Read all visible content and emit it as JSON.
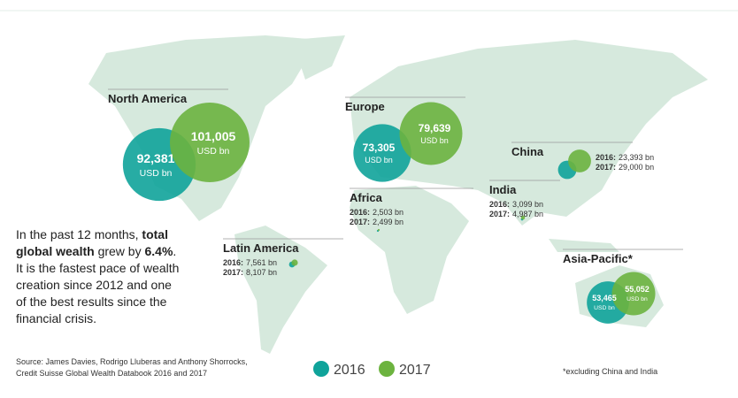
{
  "chart_data": {
    "type": "bubble-map",
    "series": [
      {
        "name": "2016",
        "color": "#0fa39a"
      },
      {
        "name": "2017",
        "color": "#6cb33f"
      }
    ],
    "year_labels": [
      "2016:",
      "2017:"
    ],
    "unit": "USD bn",
    "regions": [
      {
        "name": "North America",
        "values": [
          92381,
          101005
        ],
        "value_labels": [
          "92,381",
          "101,005"
        ]
      },
      {
        "name": "Europe",
        "values": [
          73305,
          79639
        ],
        "value_labels": [
          "73,305",
          "79,639"
        ]
      },
      {
        "name": "Africa",
        "values": [
          2503,
          2499
        ],
        "value_labels": [
          "2,503 bn",
          "2,499 bn"
        ]
      },
      {
        "name": "Latin America",
        "values": [
          7561,
          8107
        ],
        "value_labels": [
          "7,561 bn",
          "8,107 bn"
        ]
      },
      {
        "name": "India",
        "values": [
          3099,
          4987
        ],
        "value_labels": [
          "3,099 bn",
          "4,987 bn"
        ]
      },
      {
        "name": "China",
        "values": [
          23393,
          29000
        ],
        "value_labels": [
          "23,393 bn",
          "29,000 bn"
        ]
      },
      {
        "name": "Asia-Pacific*",
        "values": [
          53465,
          55052
        ],
        "value_labels": [
          "53,465",
          "55,052"
        ]
      }
    ],
    "note": [
      {
        "text": "In the past 12 months, ",
        "bold": false
      },
      {
        "text": "total global wealth",
        "bold": true
      },
      {
        "text": " grew by ",
        "bold": false
      },
      {
        "text": "6.4%",
        "bold": true
      },
      {
        "text": ". It is the fastest pace of wealth creation since 2012 and one of the best results since the financial crisis.",
        "bold": false
      }
    ],
    "source": [
      "Source: James Davies, Rodrigo Lluberas and Anthony Shorrocks,",
      "Credit Suisse Global Wealth Databook 2016 and 2017"
    ],
    "footnote": "*excluding China and India"
  }
}
